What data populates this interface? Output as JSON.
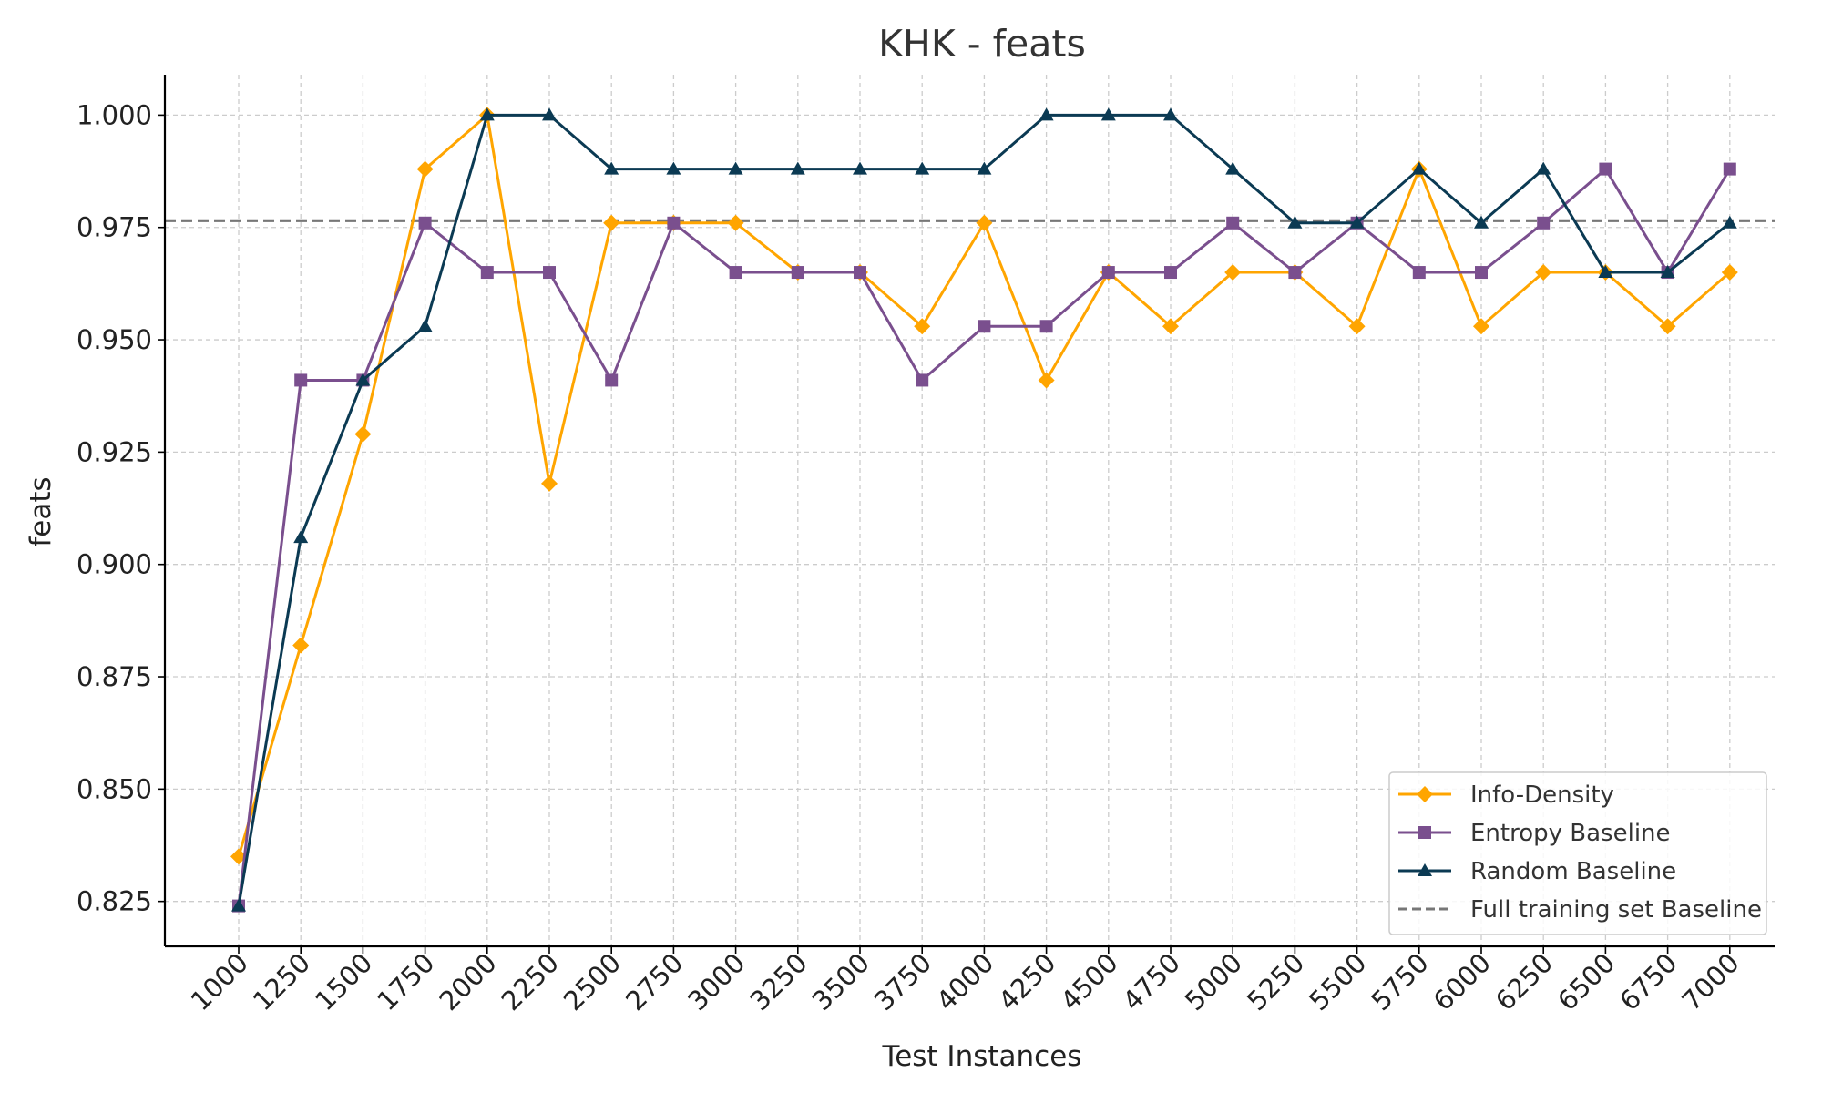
{
  "chart_data": {
    "type": "line",
    "title": "KHK - feats",
    "xlabel": "Test Instances",
    "ylabel": "feats",
    "x": [
      1000,
      1250,
      1500,
      1750,
      2000,
      2250,
      2500,
      2750,
      3000,
      3250,
      3500,
      3750,
      4000,
      4250,
      4500,
      4750,
      5000,
      5250,
      5500,
      5750,
      6000,
      6250,
      6500,
      6750,
      7000
    ],
    "xticks": [
      "1000",
      "1250",
      "1500",
      "1750",
      "2000",
      "2250",
      "2500",
      "2750",
      "3000",
      "3250",
      "3500",
      "3750",
      "4000",
      "4250",
      "4500",
      "4750",
      "5000",
      "5250",
      "5500",
      "5750",
      "6000",
      "6250",
      "6500",
      "6750",
      "7000"
    ],
    "ylim": [
      0.815,
      1.009
    ],
    "yticks": [
      "0.825",
      "0.850",
      "0.875",
      "0.900",
      "0.925",
      "0.950",
      "0.975",
      "1.000"
    ],
    "yticks_values": [
      0.825,
      0.85,
      0.875,
      0.9,
      0.925,
      0.95,
      0.975,
      1.0
    ],
    "grid": true,
    "legend_position": "lower-right",
    "series": [
      {
        "name": "Info-Density",
        "color": "#FFA500",
        "marker": "diamond",
        "values": [
          0.835,
          0.882,
          0.929,
          0.988,
          1.0,
          0.918,
          0.976,
          0.976,
          0.976,
          0.965,
          0.965,
          0.953,
          0.976,
          0.941,
          0.965,
          0.953,
          0.965,
          0.965,
          0.953,
          0.988,
          0.953,
          0.965,
          0.965,
          0.953,
          0.965
        ]
      },
      {
        "name": "Entropy Baseline",
        "color": "#7A4F8E",
        "marker": "square",
        "values": [
          0.824,
          0.941,
          0.941,
          0.976,
          0.965,
          0.965,
          0.941,
          0.976,
          0.965,
          0.965,
          0.965,
          0.941,
          0.953,
          0.953,
          0.965,
          0.965,
          0.976,
          0.965,
          0.976,
          0.965,
          0.965,
          0.976,
          0.988,
          0.965,
          0.988
        ]
      },
      {
        "name": "Random Baseline",
        "color": "#0B3A53",
        "marker": "triangle",
        "values": [
          0.824,
          0.906,
          0.941,
          0.953,
          1.0,
          1.0,
          0.988,
          0.988,
          0.988,
          0.988,
          0.988,
          0.988,
          0.988,
          1.0,
          1.0,
          1.0,
          0.988,
          0.976,
          0.976,
          0.988,
          0.976,
          0.988,
          0.965,
          0.965,
          0.976
        ]
      }
    ],
    "reference_line": {
      "name": "Full training set Baseline",
      "value": 0.9765,
      "color": "#777777",
      "style": "dashed"
    }
  }
}
